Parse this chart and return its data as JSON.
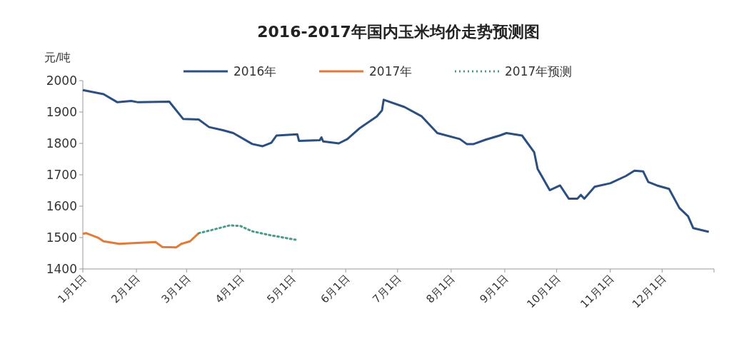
{
  "chart_data": {
    "type": "line",
    "title": "2016-2017年国内玉米均价走势预测图",
    "ylabel": "元/吨",
    "xlim": [
      "--01-01",
      "--12-31"
    ],
    "xticks": [
      {
        "value": "--01-01",
        "label": "1月1日"
      },
      {
        "value": "--02-01",
        "label": "2月1日"
      },
      {
        "value": "--03-01",
        "label": "3月1日"
      },
      {
        "value": "--04-01",
        "label": "4月1日"
      },
      {
        "value": "--05-01",
        "label": "5月1日"
      },
      {
        "value": "--06-01",
        "label": "6月1日"
      },
      {
        "value": "--07-01",
        "label": "7月1日"
      },
      {
        "value": "--08-01",
        "label": "8月1日"
      },
      {
        "value": "--09-01",
        "label": "9月1日"
      },
      {
        "value": "--10-01",
        "label": "10月1日"
      },
      {
        "value": "--11-01",
        "label": "11月1日"
      },
      {
        "value": "--12-01",
        "label": "12月1日"
      },
      {
        "value": "--12-31",
        "label": null
      }
    ],
    "ylim": [
      1400,
      2000
    ],
    "yticks": [
      1400,
      1500,
      1600,
      1700,
      1800,
      1900,
      2000
    ],
    "legend": "top",
    "series": [
      {
        "name": "2016年",
        "color": "#2b4f81",
        "line_style": "solid",
        "x": [
          "--01-01",
          "--01-13",
          "--01-21",
          "--01-29",
          "--02-02",
          "--02-20",
          "--02-28",
          "--03-08",
          "--03-14",
          "--03-22",
          "--03-28",
          "--04-08",
          "--04-14",
          "--04-19",
          "--04-22",
          "--05-04",
          "--05-05",
          "--05-17",
          "--05-18",
          "--05-19",
          "--05-28",
          "--06-02",
          "--06-09",
          "--06-19",
          "--06-22",
          "--06-23",
          "--07-05",
          "--07-15",
          "--07-24",
          "--08-06",
          "--08-10",
          "--08-14",
          "--08-21",
          "--08-29",
          "--09-02",
          "--09-11",
          "--09-18",
          "--09-20",
          "--09-27",
          "--10-03",
          "--10-08",
          "--10-13",
          "--10-15",
          "--10-17",
          "--10-23",
          "--11-01",
          "--11-10",
          "--11-15",
          "--11-20",
          "--11-23",
          "--11-28",
          "--12-05",
          "--12-11",
          "--12-16",
          "--12-19",
          "--12-28"
        ],
        "values": [
          1970,
          1957,
          1931,
          1935,
          1931,
          1933,
          1878,
          1876,
          1852,
          1842,
          1833,
          1798,
          1791,
          1802,
          1825,
          1829,
          1808,
          1810,
          1819,
          1806,
          1800,
          1814,
          1848,
          1886,
          1905,
          1939,
          1916,
          1886,
          1833,
          1814,
          1798,
          1798,
          1812,
          1825,
          1833,
          1825,
          1772,
          1719,
          1651,
          1666,
          1624,
          1624,
          1636,
          1624,
          1662,
          1673,
          1696,
          1713,
          1711,
          1677,
          1666,
          1655,
          1594,
          1568,
          1530,
          1518
        ]
      },
      {
        "name": "2017年",
        "color": "#e07b39",
        "line_style": "solid",
        "x": [
          "--01-01",
          "--01-03",
          "--01-10",
          "--01-13",
          "--01-22",
          "--02-12",
          "--02-16",
          "--02-24",
          "--02-27",
          "--03-03",
          "--03-08"
        ],
        "values": [
          1512,
          1514,
          1499,
          1488,
          1480,
          1486,
          1470,
          1469,
          1480,
          1488,
          1514
        ]
      },
      {
        "name": "2017年预测",
        "color": "#4a9a8a",
        "line_style": "dotted",
        "x": [
          "--03-08",
          "--03-17",
          "--03-26",
          "--04-01",
          "--04-08",
          "--04-18",
          "--05-03"
        ],
        "values": [
          1514,
          1526,
          1539,
          1537,
          1520,
          1508,
          1493
        ]
      }
    ]
  }
}
